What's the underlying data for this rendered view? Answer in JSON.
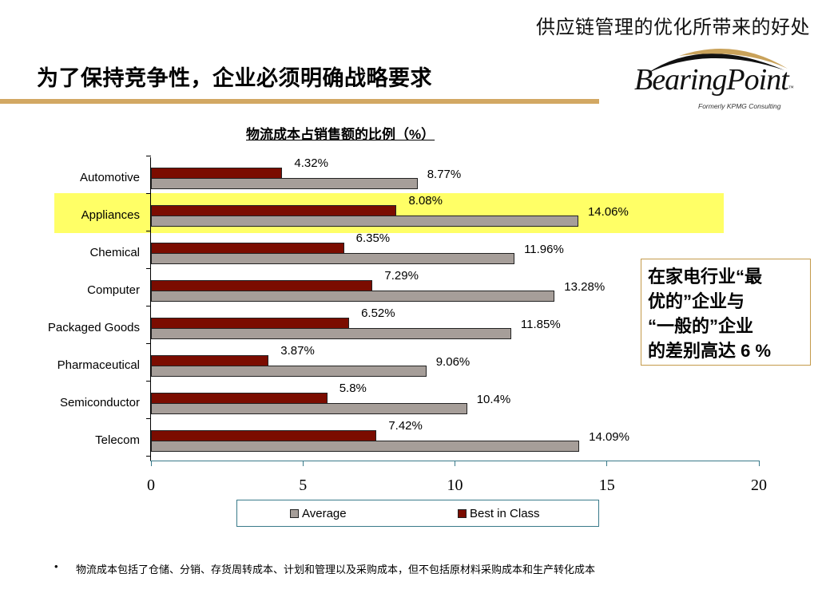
{
  "header": {
    "top_title": "供应链管理的优化所带来的好处",
    "main_title": "为了保持竞争性，企业必须明确战略要求",
    "logo": {
      "name": "BearingPoint",
      "tm": "™",
      "subtitle": "Formerly KPMG Consulting"
    }
  },
  "colors": {
    "best_in_class": "#7b0c00",
    "average": "#a69e99",
    "highlight": "#ffff66",
    "gold_rule": "#d2a863",
    "axis": "#3a7a8a"
  },
  "chart_data": {
    "type": "bar",
    "orientation": "horizontal",
    "title": "物流成本占销售额的比例（%）",
    "xlabel": "",
    "ylabel": "",
    "xlim": [
      0,
      20
    ],
    "x_ticks": [
      "0",
      "5",
      "10",
      "15",
      "20"
    ],
    "grid": false,
    "legend_position": "bottom",
    "categories": [
      "Automotive",
      "Appliances",
      "Chemical",
      "Computer",
      "Packaged Goods",
      "Pharmaceutical",
      "Semiconductor",
      "Telecom"
    ],
    "highlighted_category": "Appliances",
    "series": [
      {
        "name": "Average",
        "values": [
          8.77,
          14.06,
          11.96,
          13.28,
          11.85,
          9.06,
          10.4,
          14.09
        ],
        "labels": [
          "8.77%",
          "14.06%",
          "11.96%",
          "13.28%",
          "11.85%",
          "9.06%",
          "10.4%",
          "14.09%"
        ]
      },
      {
        "name": "Best in Class",
        "values": [
          4.32,
          8.08,
          6.35,
          7.29,
          6.52,
          3.87,
          5.8,
          7.42
        ],
        "labels": [
          "4.32%",
          "8.08%",
          "6.35%",
          "7.29%",
          "6.52%",
          "3.87%",
          "5.8%",
          "7.42%"
        ]
      }
    ]
  },
  "legend": {
    "items": [
      "Average",
      "Best in Class"
    ]
  },
  "callout": {
    "lines": [
      "在家电行业“最",
      "优的”企业与",
      " “一般的”企业",
      "的差别高达 6 %"
    ]
  },
  "footnote": {
    "bullet": "•",
    "text": "物流成本包括了仓储、分销、存货周转成本、计划和管理以及采购成本，但不包括原材料采购成本和生产转化成本"
  }
}
